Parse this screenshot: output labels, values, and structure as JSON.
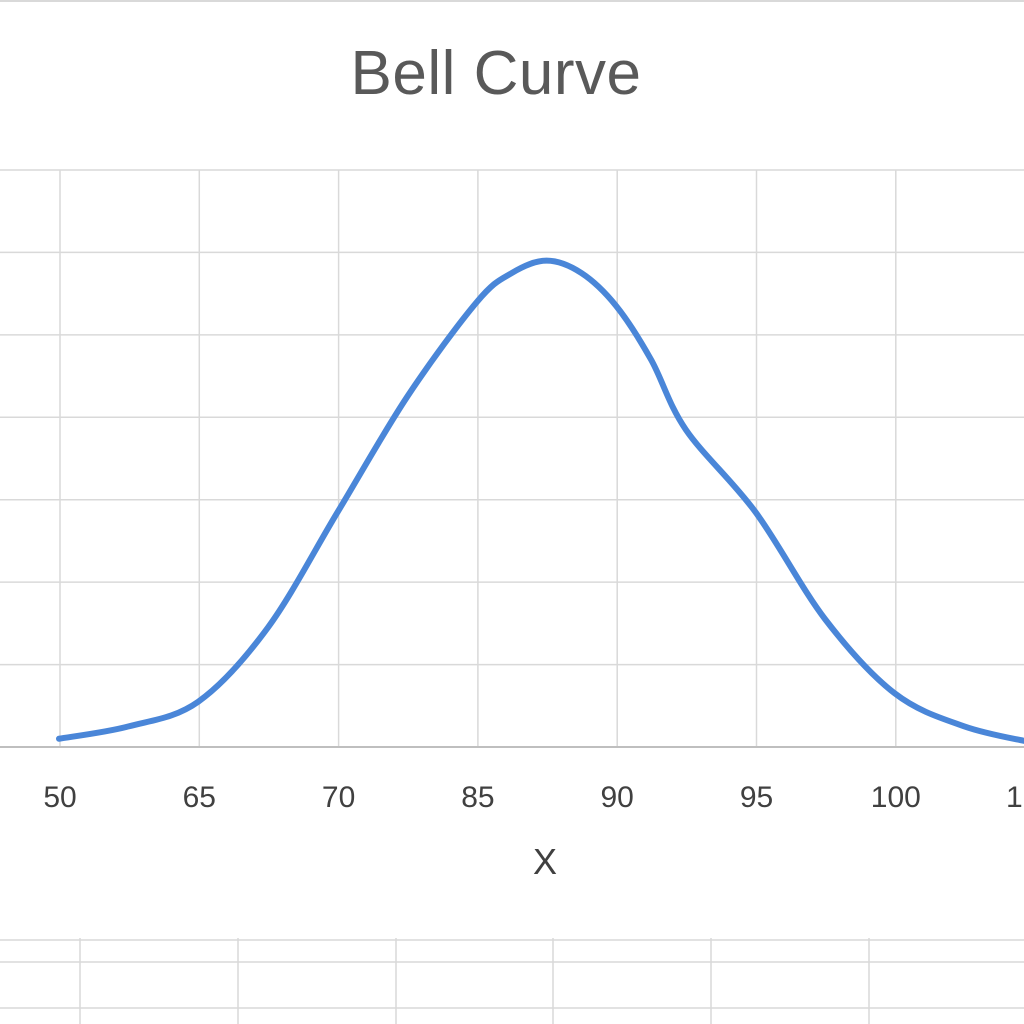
{
  "chart_data": {
    "type": "line",
    "title": "Bell Curve",
    "xlabel": "X",
    "ylabel": "",
    "x_tick_labels": [
      "50",
      "65",
      "70",
      "85",
      "90",
      "95",
      "100",
      "1"
    ],
    "grid": true,
    "legend": "none",
    "series": [
      {
        "color": "#4a86d8",
        "x": [
          0,
          0.5,
          1,
          1.5,
          2,
          2.5,
          3,
          3.25,
          3.5,
          3.75,
          4,
          4.25,
          4.5,
          5,
          5.5,
          6,
          6.5,
          7
        ],
        "y": [
          0.2,
          0.5,
          1.1,
          2.9,
          5.7,
          8.5,
          10.8,
          11.5,
          11.8,
          11.5,
          10.7,
          9.4,
          7.7,
          5.7,
          3.1,
          1.3,
          0.5,
          0.1
        ]
      }
    ],
    "ylim": [
      0,
      14
    ]
  },
  "colors": {
    "line": "#4a86d8",
    "grid": "#d9d9d9",
    "axis": "#bfbfbf",
    "title": "#595959",
    "labels": "#404040"
  }
}
